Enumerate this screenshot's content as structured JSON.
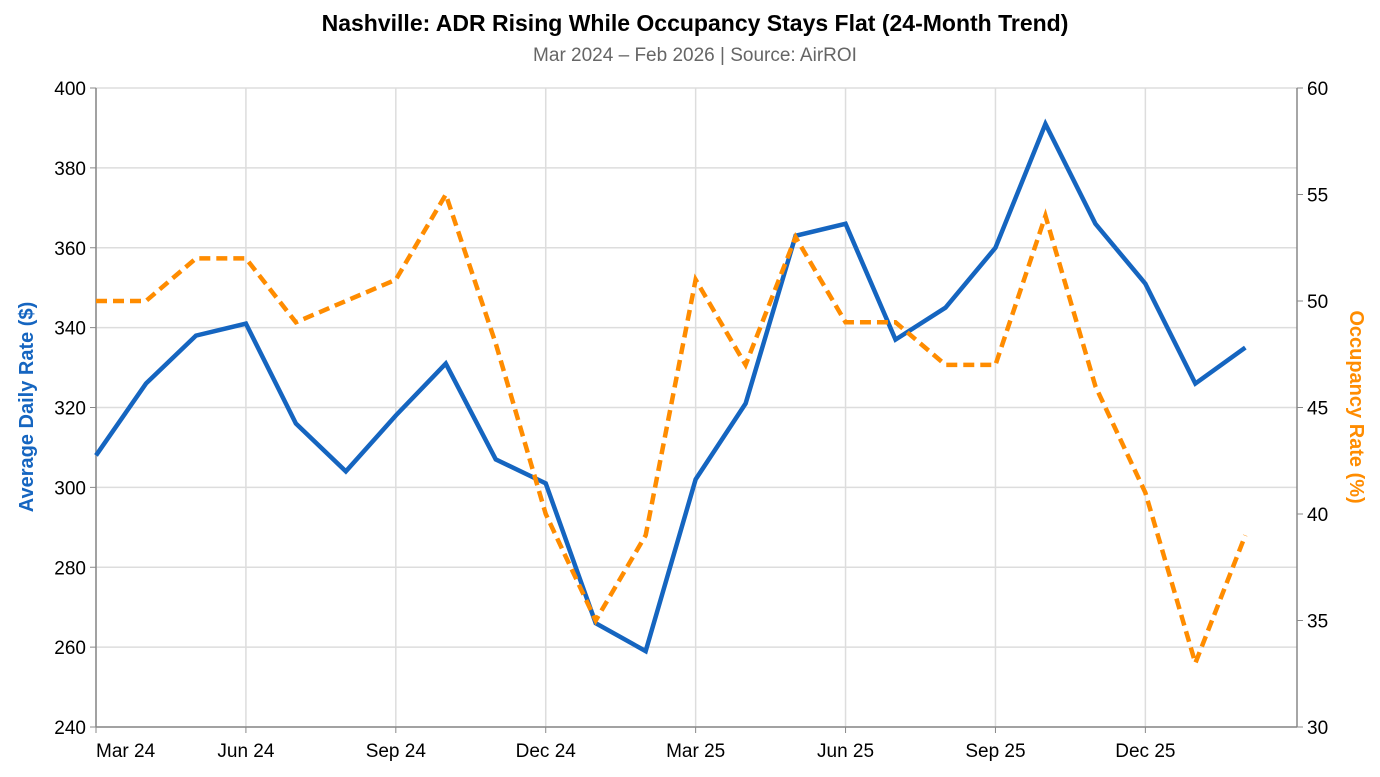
{
  "chart_data": {
    "type": "line",
    "title": "Nashville: ADR Rising While Occupancy Stays Flat (24-Month Trend)",
    "subtitle": "Mar 2024 – Feb 2026 | Source: AirROI",
    "x": [
      "2024-03",
      "2024-04",
      "2024-05",
      "2024-06",
      "2024-07",
      "2024-08",
      "2024-09",
      "2024-10",
      "2024-11",
      "2024-12",
      "2025-01",
      "2025-02",
      "2025-03",
      "2025-04",
      "2025-05",
      "2025-06",
      "2025-07",
      "2025-08",
      "2025-09",
      "2025-10",
      "2025-11",
      "2025-12",
      "2026-01",
      "2026-02"
    ],
    "x_ticks": [
      {
        "x": "2024-03",
        "label": "Mar 24"
      },
      {
        "x": "2024-06",
        "label": "Jun 24"
      },
      {
        "x": "2024-09",
        "label": "Sep 24"
      },
      {
        "x": "2024-12",
        "label": "Dec 24"
      },
      {
        "x": "2025-03",
        "label": "Mar 25"
      },
      {
        "x": "2025-06",
        "label": "Jun 25"
      },
      {
        "x": "2025-09",
        "label": "Sep 25"
      },
      {
        "x": "2025-12",
        "label": "Dec 25"
      }
    ],
    "y_left": {
      "label": "Average Daily Rate ($)",
      "range": [
        240,
        400
      ],
      "ticks": [
        240,
        260,
        280,
        300,
        320,
        340,
        360,
        380,
        400
      ],
      "color": "#1565c0"
    },
    "y_right": {
      "label": "Occupancy Rate (%)",
      "range": [
        30,
        60
      ],
      "ticks": [
        30,
        35,
        40,
        45,
        50,
        55,
        60
      ],
      "color": "#ff8c00"
    },
    "series": [
      {
        "axis": "left",
        "style": "solid",
        "color": "#1565c0",
        "values": [
          308,
          326,
          338,
          341,
          316,
          304,
          318,
          331,
          307,
          301,
          266,
          259,
          302,
          321,
          363,
          366,
          337,
          345,
          360,
          391,
          366,
          351,
          326,
          335
        ]
      },
      {
        "axis": "right",
        "style": "dashed",
        "color": "#ff8c00",
        "values": [
          50,
          50,
          52,
          52,
          49,
          50,
          51,
          55,
          48,
          40,
          35,
          39,
          51,
          47,
          53,
          49,
          49,
          47,
          47,
          54,
          46,
          41,
          33,
          39
        ]
      }
    ],
    "grid": true
  }
}
